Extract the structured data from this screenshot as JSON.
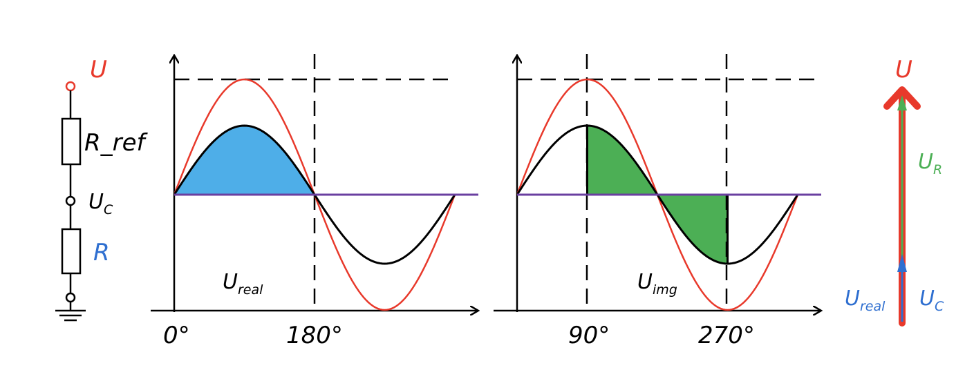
{
  "colors": {
    "red": "#e8392b",
    "black": "#000000",
    "blue_fill": "#4eaee8",
    "green_fill": "#4caf55",
    "purple": "#6a3fa0",
    "green_arrow": "#4caf55",
    "blue_arrow": "#2f6fd0",
    "blue_text": "#2f6fd0"
  },
  "circuit": {
    "u_label": "U",
    "r_ref_label": "R_ref",
    "uc_main": "U",
    "uc_sub": "C",
    "r_label": "R"
  },
  "left_plot": {
    "u_main": "U",
    "u_sub": "real",
    "tick_0": "0°",
    "tick_180": "180°"
  },
  "right_plot": {
    "u_main": "U",
    "u_sub": "img",
    "tick_90": "90°",
    "tick_270": "270°"
  },
  "phasor": {
    "u_label": "U",
    "ur_main": "U",
    "ur_sub": "R",
    "ureal_main": "U",
    "ureal_sub": "real",
    "uc_main": "U",
    "uc_sub": "C"
  }
}
